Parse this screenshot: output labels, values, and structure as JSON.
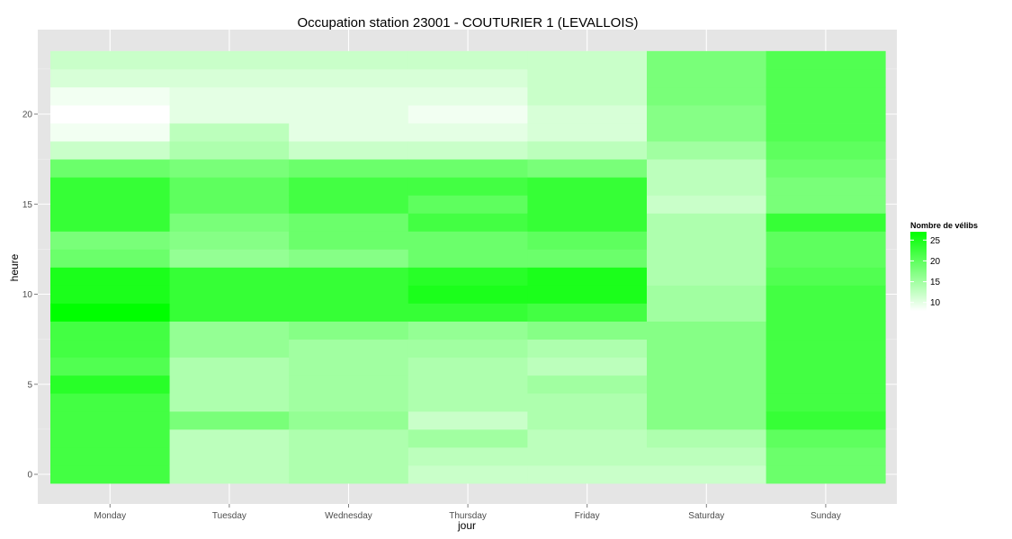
{
  "chart_data": {
    "type": "heatmap",
    "title": "Occupation station 23001 - COUTURIER 1 (LEVALLOIS)",
    "xlabel": "jour",
    "ylabel": "heure",
    "x_categories": [
      "Monday",
      "Tuesday",
      "Wednesday",
      "Thursday",
      "Friday",
      "Saturday",
      "Sunday"
    ],
    "y_values": [
      0,
      1,
      2,
      3,
      4,
      5,
      6,
      7,
      8,
      9,
      10,
      11,
      12,
      13,
      14,
      15,
      16,
      17,
      18,
      19,
      20,
      21,
      22,
      23
    ],
    "y_ticks": [
      0,
      5,
      10,
      15,
      20
    ],
    "ylim": [
      -0.6,
      23.9
    ],
    "grid": true,
    "legend": {
      "title": "Nombre de vélibs",
      "position": "right",
      "ticks": [
        10,
        15,
        20,
        25
      ],
      "min": 8,
      "max": 27,
      "color_low": "#ffffff",
      "color_high": "#00ff00"
    },
    "series": [
      {
        "day": "Monday",
        "values": [
          22,
          22,
          22,
          22,
          22,
          24,
          21,
          22,
          22,
          27,
          25,
          25,
          19,
          18,
          23,
          23,
          23,
          19,
          12,
          9,
          8,
          9,
          11,
          12
        ]
      },
      {
        "day": "Tuesday",
        "values": [
          13,
          13,
          13,
          18,
          14,
          14,
          14,
          16,
          16,
          23,
          23,
          23,
          16,
          17,
          18,
          20,
          20,
          18,
          14,
          13,
          10,
          10,
          11,
          12
        ]
      },
      {
        "day": "Wednesday",
        "values": [
          14,
          14,
          14,
          16,
          15,
          15,
          15,
          15,
          17,
          23,
          23,
          23,
          17,
          19,
          19,
          22,
          22,
          19,
          12,
          10,
          10,
          10,
          11,
          12
        ]
      },
      {
        "day": "Thursday",
        "values": [
          12,
          13,
          15,
          12,
          14,
          14,
          14,
          15,
          16,
          23,
          25,
          24,
          19,
          19,
          22,
          20,
          22,
          19,
          12,
          10,
          9,
          10,
          11,
          12
        ]
      },
      {
        "day": "Friday",
        "values": [
          12,
          13,
          13,
          14,
          14,
          15,
          13,
          14,
          17,
          22,
          25,
          25,
          19,
          20,
          23,
          23,
          23,
          18,
          13,
          11,
          11,
          12,
          12,
          12
        ]
      },
      {
        "day": "Saturday",
        "values": [
          12,
          13,
          14,
          17,
          17,
          17,
          17,
          17,
          17,
          15,
          15,
          14,
          14,
          14,
          14,
          12,
          13,
          13,
          15,
          17,
          17,
          18,
          18,
          18
        ]
      },
      {
        "day": "Sunday",
        "values": [
          19,
          19,
          20,
          23,
          22,
          22,
          22,
          22,
          22,
          22,
          22,
          21,
          20,
          20,
          23,
          18,
          18,
          19,
          20,
          21,
          21,
          21,
          21,
          21
        ]
      }
    ],
    "colors": {
      "panel_background": "#e5e5e5",
      "grid_major": "#ffffff",
      "grid_minor": "#f2f2f2"
    }
  }
}
